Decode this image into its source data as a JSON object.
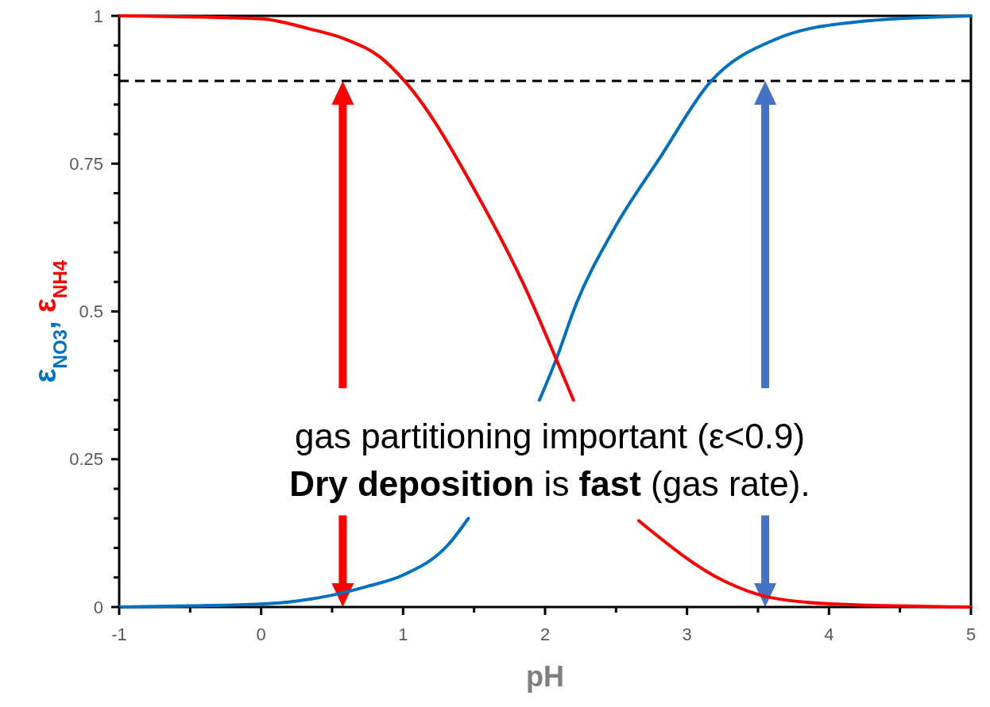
{
  "chart_data": {
    "type": "line",
    "xlabel": "pH",
    "ylabel": "ε$_{NO3}$, ε$_{NH4}$",
    "xlim": [
      -1,
      5
    ],
    "xticks": [
      -1,
      {
        "value": -0.5,
        "label": null
      },
      0,
      {
        "value": 0.5,
        "label": null
      },
      1,
      {
        "value": 1.5,
        "label": null
      },
      2,
      {
        "value": 2.5,
        "label": null
      },
      3,
      {
        "value": 3.5,
        "label": null
      },
      4,
      {
        "value": 4.5,
        "label": null
      },
      5
    ],
    "ylim": [
      0,
      1
    ],
    "yticks": [
      0,
      {
        "value": 0.05,
        "label": null
      },
      {
        "value": 0.1,
        "label": null
      },
      {
        "value": 0.15,
        "label": null
      },
      {
        "value": 0.2,
        "label": null
      },
      0.25,
      {
        "value": 0.3,
        "label": null
      },
      {
        "value": 0.35,
        "label": null
      },
      {
        "value": 0.4,
        "label": null
      },
      {
        "value": 0.45,
        "label": null
      },
      0.5,
      {
        "value": 0.55,
        "label": null
      },
      {
        "value": 0.6,
        "label": null
      },
      {
        "value": 0.65,
        "label": null
      },
      {
        "value": 0.7,
        "label": null
      },
      0.75,
      {
        "value": 0.8,
        "label": null
      },
      {
        "value": 0.85,
        "label": null
      },
      {
        "value": 0.9,
        "label": null
      },
      {
        "value": 0.95,
        "label": null
      },
      1
    ],
    "grid": false,
    "marker": "none",
    "line_style": "solid",
    "series": [
      {
        "color": "#0070c0",
        "x": [
          -1,
          -0.5,
          0,
          0.25,
          0.5,
          0.75,
          1.0,
          1.32,
          1.46,
          1.75,
          1.96,
          2.08,
          2.22,
          2.475,
          2.82,
          3.16,
          3.62,
          4.2,
          5
        ],
        "values": [
          0,
          0.002,
          0.005,
          0.01,
          0.02,
          0.035,
          0.054,
          0.106,
          0.15,
          null,
          0.35,
          0.42,
          0.513,
          0.635,
          0.764,
          0.887,
          0.96,
          0.99,
          1
        ]
      },
      {
        "color": "#ff0000",
        "x": [
          -1,
          0,
          0.34,
          0.6,
          0.84,
          1.02,
          1.54,
          1.87,
          2.06,
          2.2,
          2.35,
          2.66,
          3.27,
          3.57,
          4.04,
          5
        ],
        "values": [
          1,
          0.995,
          0.978,
          0.96,
          0.93,
          0.887,
          0.69,
          0.535,
          0.43,
          0.35,
          null,
          0.146,
          0.043,
          0.017,
          0.005,
          0
        ]
      }
    ],
    "ref_lines": [
      {
        "axis": "y",
        "value": 0.89,
        "color": "#000000",
        "line_style": "dashed"
      }
    ],
    "annotations": [
      "gas partitioning important (ε<0.9)",
      "Dry deposition is fast (gas rate)."
    ]
  }
}
